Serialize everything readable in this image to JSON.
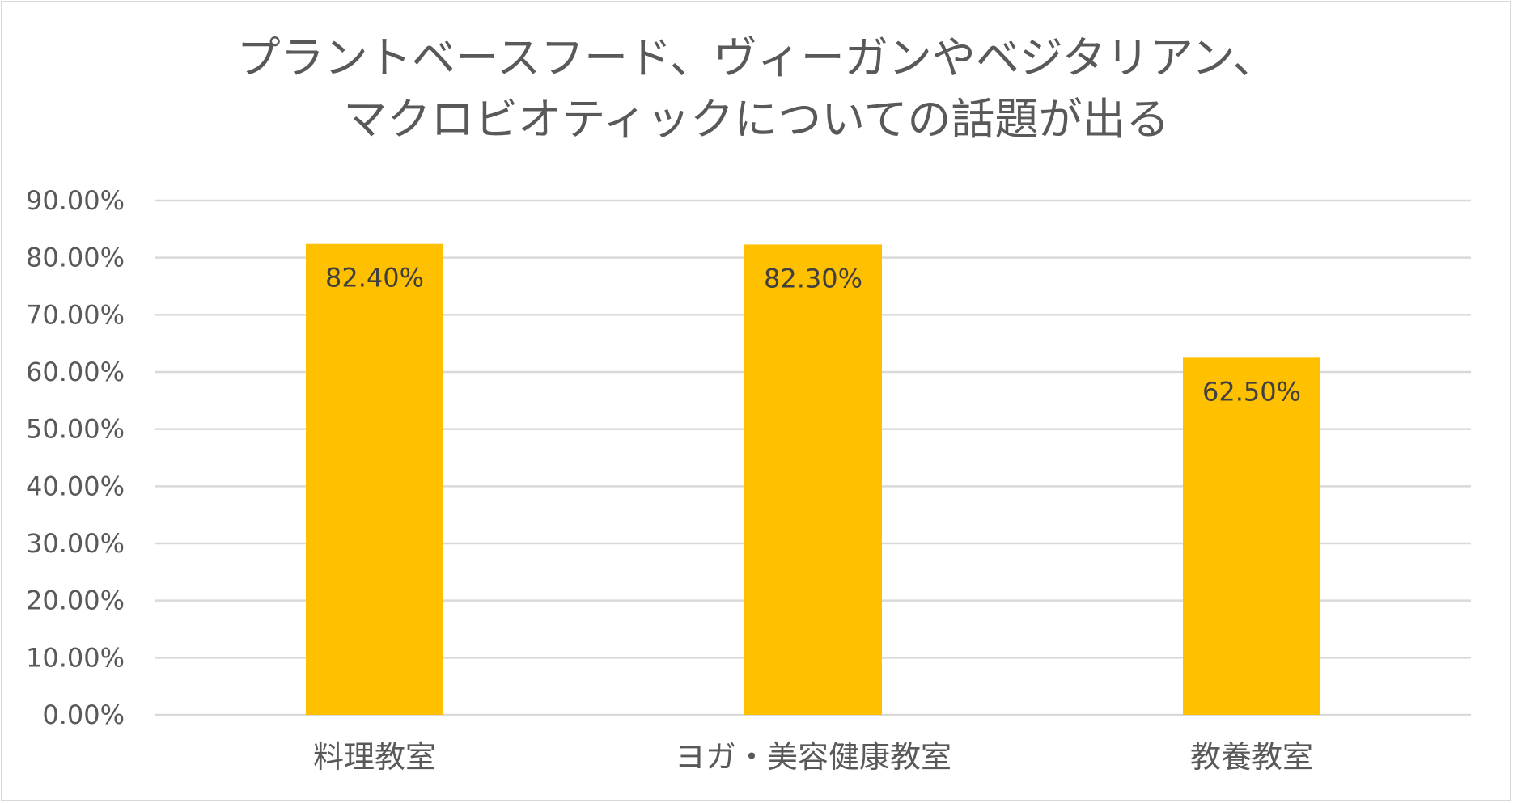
{
  "chart_data": {
    "type": "bar",
    "title": [
      "プラントベースフード、ヴィーガンやベジタリアン、",
      "マクロビオティックについての話題が出る"
    ],
    "categories": [
      "料理教室",
      "ヨガ・美容健康教室",
      "教養教室"
    ],
    "values": [
      82.4,
      82.3,
      62.5
    ],
    "data_labels": [
      "82.40%",
      "82.30%",
      "62.50%"
    ],
    "y_ticks": [
      "0.00%",
      "10.00%",
      "20.00%",
      "30.00%",
      "40.00%",
      "50.00%",
      "60.00%",
      "70.00%",
      "80.00%",
      "90.00%"
    ],
    "ylim": [
      0,
      90
    ],
    "grid": true,
    "legend": "none",
    "bar_color": "#FFC000",
    "grid_color": "#d9d9d9",
    "text_color": "#595959"
  }
}
